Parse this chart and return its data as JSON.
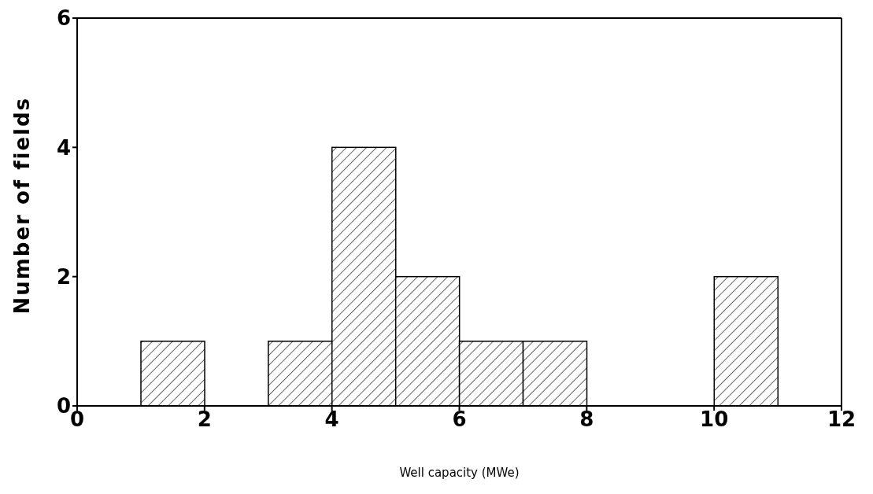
{
  "chart_data": {
    "type": "histogram",
    "xlabel": "Well capacity (MWe)",
    "ylabel": "Number of fields",
    "bins": [
      0,
      1,
      2,
      3,
      4,
      5,
      6,
      7,
      8,
      9,
      10,
      11,
      12
    ],
    "values": [
      0,
      1,
      0,
      1,
      4,
      2,
      1,
      1,
      0,
      0,
      2,
      0
    ],
    "color": "#000000",
    "xlim": [
      0,
      12
    ],
    "xticks": [
      0,
      2,
      4,
      6,
      8,
      10,
      12
    ],
    "ylim": [
      0,
      6
    ],
    "yticks": [
      0,
      2,
      4,
      6
    ],
    "grid": false,
    "legend": false
  }
}
